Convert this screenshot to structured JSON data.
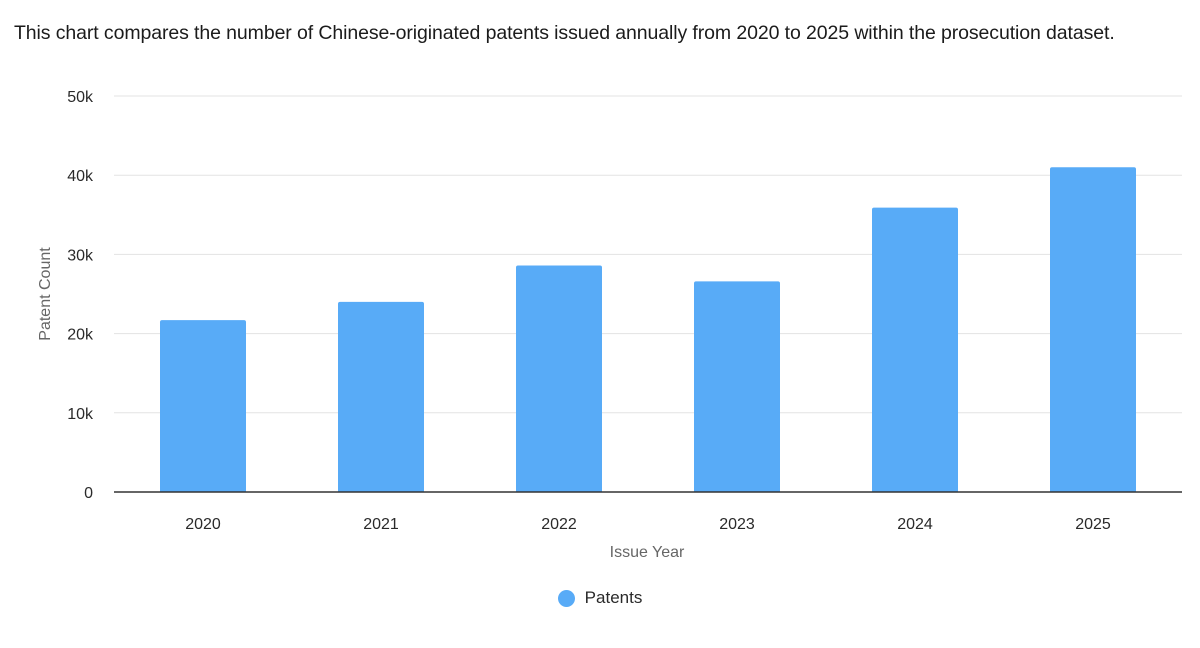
{
  "subtitle": "This chart compares the number of Chinese-originated patents issued annually from 2020 to 2025 within the prosecution dataset.",
  "chart_data": {
    "type": "bar",
    "categories": [
      "2020",
      "2021",
      "2022",
      "2023",
      "2024",
      "2025"
    ],
    "series": [
      {
        "name": "Patents",
        "values": [
          21700,
          24000,
          28600,
          26600,
          35900,
          41000
        ],
        "color": "#58abf7"
      }
    ],
    "xlabel": "Issue Year",
    "ylabel": "Patent Count",
    "ylim": [
      0,
      50000
    ],
    "yticks": [
      0,
      10000,
      20000,
      30000,
      40000,
      50000
    ],
    "ytick_labels": [
      "0",
      "10k",
      "20k",
      "30k",
      "40k",
      "50k"
    ],
    "grid": true,
    "legend_position": "bottom-center"
  }
}
